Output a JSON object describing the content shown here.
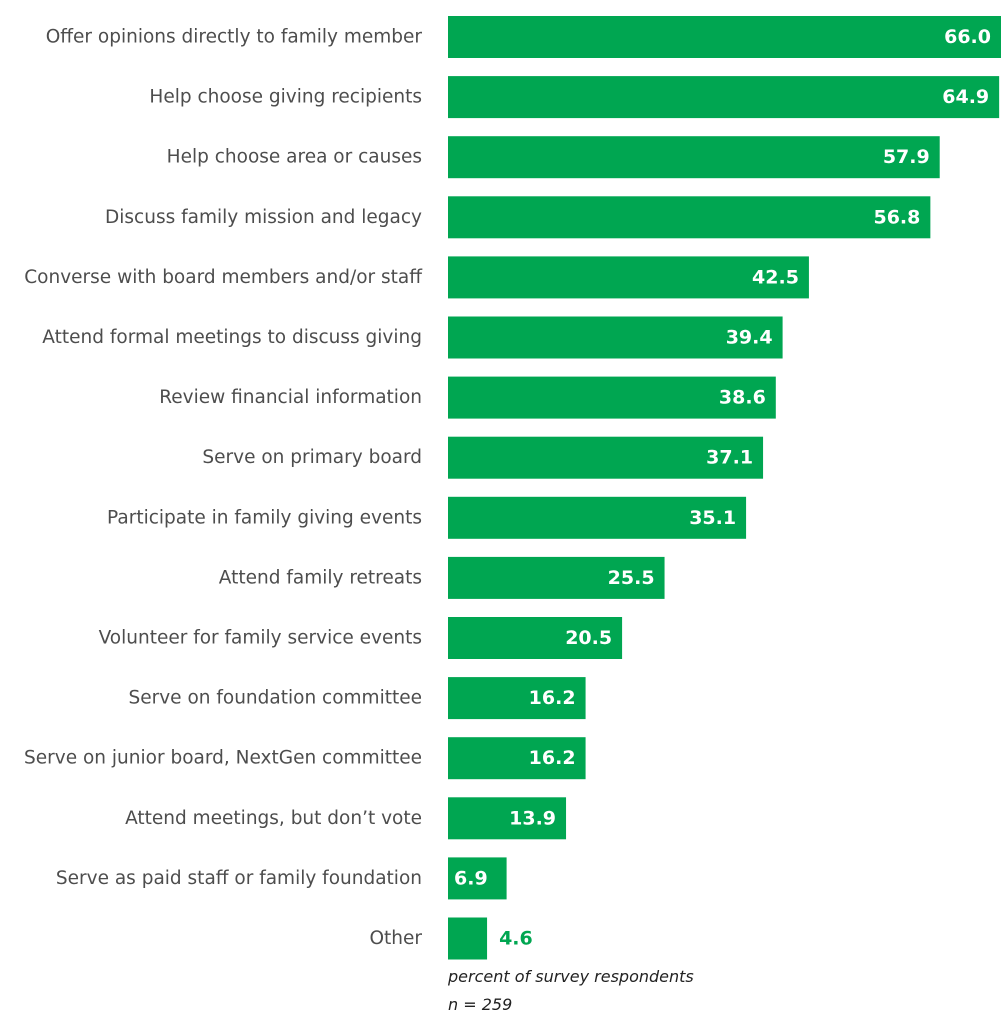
{
  "chart_data": {
    "type": "bar",
    "orientation": "horizontal",
    "categories": [
      "Offer opinions directly to family member",
      "Help choose giving recipients",
      "Help choose area or causes",
      "Discuss family mission and legacy",
      "Converse with board members and/or staff",
      "Attend formal meetings to discuss giving",
      "Review financial information",
      "Serve on primary board",
      "Participate in family giving events",
      "Attend family retreats",
      "Volunteer for family service events",
      "Serve on foundation committee",
      "Serve on junior board, NextGen committee",
      "Attend meetings, but don’t vote",
      "Serve as paid staff or family foundation",
      "Other"
    ],
    "values": [
      66.0,
      64.9,
      57.9,
      56.8,
      42.5,
      39.4,
      38.6,
      37.1,
      35.1,
      25.5,
      20.5,
      16.2,
      16.2,
      13.9,
      6.9,
      4.6
    ],
    "value_labels": [
      "66.0",
      "64.9",
      "57.9",
      "56.8",
      "42.5",
      "39.4",
      "38.6",
      "37.1",
      "35.1",
      "25.5",
      "20.5",
      "16.2",
      "16.2",
      "13.9",
      "6.9",
      "4.6"
    ],
    "xlim": [
      0,
      65
    ],
    "grid": false,
    "bar_color": "#00a651",
    "value_label_color_inside": "#ffffff",
    "value_label_color_outside": "#00a651"
  },
  "footnote": {
    "line1": "percent of survey respondents",
    "line2": "n = 259"
  }
}
